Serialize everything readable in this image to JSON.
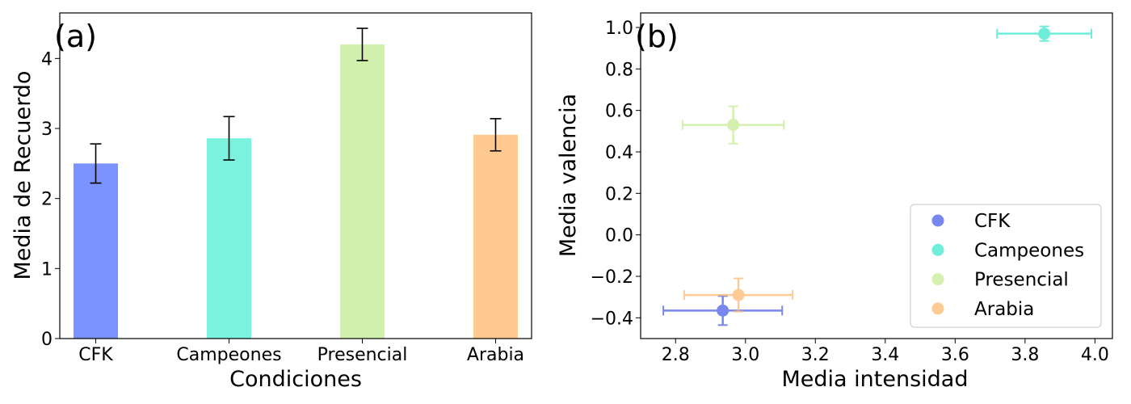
{
  "chart_data": [
    {
      "type": "bar",
      "panel_label": "(a)",
      "xlabel": "Condiciones",
      "ylabel": "Media de Recuerdo",
      "ylim": [
        0,
        4.65
      ],
      "yticks": [
        "0",
        "1",
        "2",
        "3",
        "4"
      ],
      "categories": [
        "CFK",
        "Campeones",
        "Presencial",
        "Arabia"
      ],
      "values": [
        2.5,
        2.86,
        4.2,
        2.91
      ],
      "errors": [
        0.28,
        0.31,
        0.23,
        0.23
      ],
      "colors": [
        "#7b93ff",
        "#7af2de",
        "#d2f0ad",
        "#ffc98f"
      ]
    },
    {
      "type": "scatter",
      "panel_label": "(b)",
      "xlabel": "Media intensidad",
      "ylabel": "Media valencia",
      "xlim": [
        2.7,
        4.05
      ],
      "ylim": [
        -0.5,
        1.07
      ],
      "xticks": [
        "2.8",
        "3.0",
        "3.2",
        "3.4",
        "3.6",
        "3.8",
        "4.0"
      ],
      "yticks": [
        "−0.4",
        "−0.2",
        "0.0",
        "0.2",
        "0.4",
        "0.6",
        "0.8",
        "1.0"
      ],
      "legend_position": "lower-right",
      "series": [
        {
          "name": "CFK",
          "x": 2.935,
          "y": -0.365,
          "xerr": 0.17,
          "yerr": 0.07,
          "color": "#4a5fe8"
        },
        {
          "name": "Campeones",
          "x": 3.855,
          "y": 0.97,
          "xerr": 0.135,
          "yerr": 0.035,
          "color": "#3ee8cf"
        },
        {
          "name": "Presencial",
          "x": 2.965,
          "y": 0.53,
          "xerr": 0.145,
          "yerr": 0.09,
          "color": "#c6ec94"
        },
        {
          "name": "Arabia",
          "x": 2.98,
          "y": -0.29,
          "xerr": 0.155,
          "yerr": 0.08,
          "color": "#ffb970"
        }
      ]
    }
  ]
}
